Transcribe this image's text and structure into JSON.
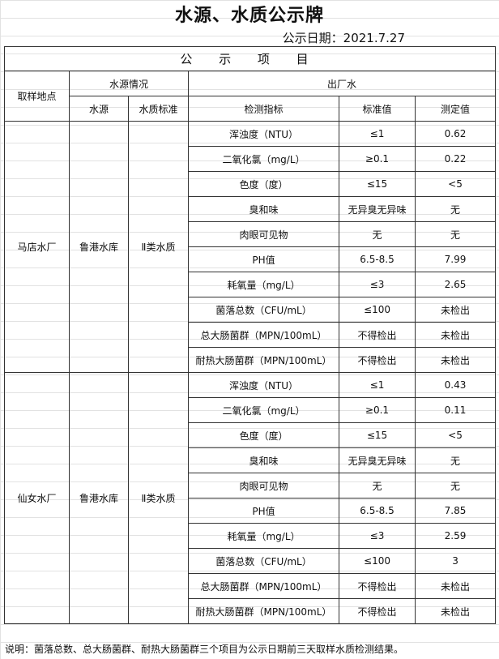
{
  "title": "水源、水质公示牌",
  "date": "公示日期：2021.7.27",
  "section": "公 示 项 目",
  "headers": {
    "site": "取样地点",
    "source_info": "水源情况",
    "outlet": "出厂水",
    "source": "水源",
    "quality_std": "水质标准",
    "indicator": "检测指标",
    "standard": "标准值",
    "measured": "测定值"
  },
  "plants": [
    {
      "site": "马店水厂",
      "source": "鲁港水库",
      "quality_std": "Ⅱ类水质",
      "rows": [
        [
          "浑浊度（NTU）",
          "≤1",
          "0.62"
        ],
        [
          "二氧化氯（mg/L）",
          "≥0.1",
          "0.22"
        ],
        [
          "色度（度）",
          "≤15",
          "<5"
        ],
        [
          "臭和味",
          "无异臭无异味",
          "无"
        ],
        [
          "肉眼可见物",
          "无",
          "无"
        ],
        [
          "PH值",
          "6.5-8.5",
          "7.99"
        ],
        [
          "耗氧量（mg/L）",
          "≤3",
          "2.65"
        ],
        [
          "菌落总数（CFU/mL）",
          "≤100",
          "未检出"
        ],
        [
          "总大肠菌群（MPN/100mL）",
          "不得检出",
          "未检出"
        ],
        [
          "耐热大肠菌群（MPN/100mL）",
          "不得检出",
          "未检出"
        ]
      ]
    },
    {
      "site": "仙女水厂",
      "source": "鲁港水库",
      "quality_std": "Ⅱ类水质",
      "rows": [
        [
          "浑浊度（NTU）",
          "≤1",
          "0.43"
        ],
        [
          "二氧化氯（mg/L）",
          "≥0.1",
          "0.11"
        ],
        [
          "色度（度）",
          "≤15",
          "<5"
        ],
        [
          "臭和味",
          "无异臭无异味",
          "无"
        ],
        [
          "肉眼可见物",
          "无",
          "无"
        ],
        [
          "PH值",
          "6.5-8.5",
          "7.85"
        ],
        [
          "耗氧量（mg/L）",
          "≤3",
          "2.59"
        ],
        [
          "菌落总数（CFU/mL）",
          "≤100",
          "3"
        ],
        [
          "总大肠菌群（MPN/100mL）",
          "不得检出",
          "未检出"
        ],
        [
          "耐热大肠菌群（MPN/100mL）",
          "不得检出",
          "未检出"
        ]
      ]
    }
  ],
  "note": "说明：菌落总数、总大肠菌群、耐热大肠菌群三个项目为公示日期前三天取样水质检测结果。"
}
